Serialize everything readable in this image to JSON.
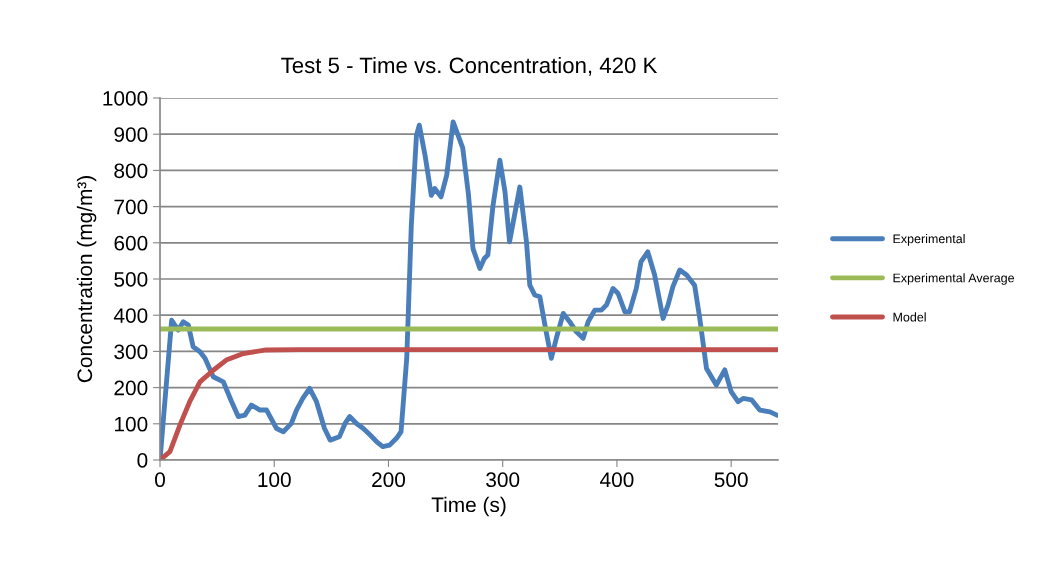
{
  "chart_data": {
    "type": "line",
    "title": "Test 5 - Time vs. Concentration, 420 K",
    "xlabel": "Time (s)",
    "ylabel": "Concentration (mg/m³)",
    "xlim": [
      0,
      541
    ],
    "xticks": [
      0,
      100,
      200,
      300,
      400,
      500
    ],
    "ylim": [
      0,
      1000
    ],
    "yticks": [
      0,
      100,
      200,
      300,
      400,
      500,
      600,
      700,
      800,
      900,
      1000
    ],
    "grid": "y",
    "legend": "right",
    "marker": "none",
    "line_style": "solid",
    "series": [
      {
        "name": "Experimental",
        "color": "#4a7ebb",
        "x": [
          0,
          10.2,
          16,
          20.4,
          24.8,
          29,
          35,
          39.4,
          46.6,
          55.4,
          62.7,
          68.5,
          74.3,
          80,
          87.5,
          93.3,
          102,
          108,
          115,
          119.5,
          125,
          131,
          137,
          144,
          149,
          157,
          162,
          166,
          172,
          178,
          184,
          189.5,
          195,
          201,
          207,
          211,
          216,
          220,
          224.5,
          227,
          232,
          237.5,
          240.5,
          246,
          251,
          256.6,
          265,
          270,
          274,
          280,
          284,
          287,
          291.5,
          297.5,
          302,
          306,
          315,
          320.8,
          323.7,
          328,
          332.5,
          338,
          342.6,
          347,
          353,
          358.6,
          364.5,
          370.4,
          374.8,
          380.6,
          386.4,
          390.8,
          396.6,
          401,
          407,
          411,
          417,
          421,
          427,
          433,
          440.4,
          444.7,
          449,
          455,
          461,
          468,
          472.5,
          478.4,
          487,
          494.4,
          500,
          506,
          510.5,
          518,
          525,
          534,
          540
        ],
        "values": [
          0,
          386,
          359,
          382,
          373,
          313,
          299,
          281,
          230,
          216,
          161,
          120,
          124,
          152,
          138,
          138,
          87,
          78,
          101,
          138,
          170,
          198,
          161,
          87,
          55,
          64,
          101,
          120,
          101,
          87,
          69,
          51,
          37,
          41,
          60,
          78,
          281,
          649,
          897,
          925,
          842,
          731,
          750,
          727,
          787,
          934,
          862,
          734,
          584,
          529,
          557,
          566,
          703,
          828,
          741,
          603,
          754,
          603,
          483,
          456,
          451,
          355,
          281,
          337,
          405,
          382,
          354,
          336,
          382,
          414,
          414,
          428,
          474,
          460,
          409,
          409,
          474,
          547,
          575,
          511,
          391,
          428,
          479,
          525,
          511,
          483,
          391,
          253,
          207,
          249,
          189,
          161,
          170,
          166,
          138,
          133,
          124
        ]
      },
      {
        "name": "Experimental Average",
        "color": "#9bbb59",
        "x": [
          0,
          541
        ],
        "values": [
          362,
          362
        ]
      },
      {
        "name": "Model",
        "color": "#c0504d",
        "x": [
          0,
          8.7,
          17.5,
          26,
          35,
          46.6,
          58,
          73,
          93,
          122,
          541
        ],
        "values": [
          0,
          23,
          97,
          161,
          216,
          248,
          276,
          294,
          304,
          305,
          305
        ]
      }
    ]
  }
}
